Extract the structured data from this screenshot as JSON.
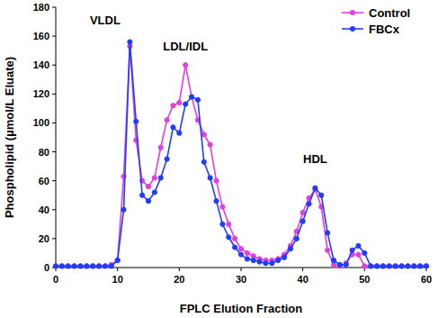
{
  "chart_data": {
    "type": "line",
    "x_label": "FPLC Elution Fraction",
    "y_label": "Phospholipid (µmol/L Eluate)",
    "x": [
      0,
      1,
      2,
      3,
      4,
      5,
      6,
      7,
      8,
      9,
      10,
      11,
      12,
      13,
      14,
      15,
      16,
      17,
      18,
      19,
      20,
      21,
      22,
      23,
      24,
      25,
      26,
      27,
      28,
      29,
      30,
      31,
      32,
      33,
      34,
      35,
      36,
      37,
      38,
      39,
      40,
      41,
      42,
      43,
      44,
      45,
      46,
      47,
      48,
      49,
      50,
      51,
      52,
      53,
      54,
      55,
      56,
      57,
      58,
      59,
      60
    ],
    "series": [
      {
        "name": "Control",
        "color": "#e040e0",
        "marker": "circle",
        "line_style": "solid",
        "values": [
          1,
          1,
          1,
          1,
          1,
          1,
          1,
          1,
          1,
          2,
          5,
          63,
          153,
          88,
          60,
          56,
          62,
          83,
          102,
          112,
          114,
          140,
          118,
          102,
          92,
          85,
          60,
          42,
          30,
          20,
          13,
          10,
          8,
          6,
          5,
          5,
          6,
          9,
          15,
          25,
          38,
          48,
          54,
          42,
          12,
          2,
          1,
          3,
          9,
          9,
          1,
          1,
          1,
          1,
          1,
          1,
          1,
          1,
          1,
          1,
          1
        ]
      },
      {
        "name": "FBCx",
        "color": "#1f3cff",
        "marker": "circle",
        "line_style": "solid",
        "values": [
          1,
          1,
          1,
          1,
          1,
          1,
          1,
          1,
          1,
          1,
          5,
          40,
          156,
          101,
          50,
          46,
          52,
          62,
          75,
          97,
          93,
          113,
          118,
          116,
          73,
          62,
          46,
          30,
          21,
          14,
          9,
          6,
          5,
          4,
          3,
          3,
          5,
          7,
          13,
          20,
          32,
          44,
          55,
          50,
          24,
          5,
          2,
          2,
          12,
          15,
          10,
          1,
          1,
          1,
          1,
          1,
          1,
          1,
          1,
          1,
          1
        ]
      }
    ],
    "annotations": [
      {
        "text": "VLDL",
        "x": 8,
        "y": 168
      },
      {
        "text": "LDL/IDL",
        "x": 21,
        "y": 150
      },
      {
        "text": "HDL",
        "x": 42,
        "y": 72
      }
    ],
    "xlim": [
      0,
      60
    ],
    "ylim": [
      0,
      180
    ],
    "xticks": [
      0,
      10,
      20,
      30,
      40,
      50,
      60
    ],
    "yticks": [
      0,
      20,
      40,
      60,
      80,
      100,
      120,
      140,
      160,
      180
    ],
    "grid": false,
    "legend": "top-right"
  }
}
